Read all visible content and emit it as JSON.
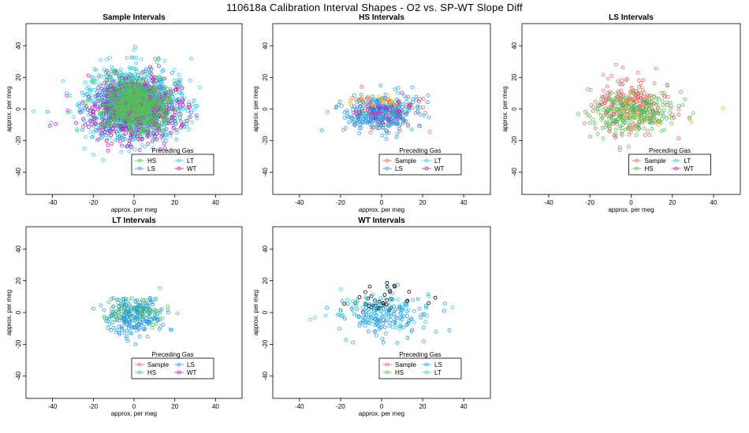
{
  "figure_title": "110618a   Calibration Interval Shapes - O2 vs. SP-WT Slope Diff",
  "colors": {
    "Sample": "#e8696e",
    "HS": "#55c05a",
    "LS": "#2b9ee6",
    "LT": "#36d0de",
    "WT": "#bb1fbf",
    "black": "#000000",
    "yellow": "#f0c020"
  },
  "chart_data": [
    {
      "type": "scatter",
      "title": "Sample Intervals",
      "xlabel": "approx. per meg",
      "ylabel": "approx. per meg",
      "xlim": [
        -53,
        53
      ],
      "ylim": [
        -54,
        54
      ],
      "xticks": [
        -40,
        -20,
        0,
        20,
        40
      ],
      "yticks": [
        -40,
        -20,
        0,
        20,
        40
      ],
      "legend": {
        "title": "Preceding Gas",
        "placement": "bottom-right",
        "entries": [
          "HS",
          "LT",
          "LS",
          "WT"
        ]
      },
      "series": [
        {
          "name": "LT",
          "color_key": "LT",
          "count": 700,
          "center": [
            0,
            3
          ],
          "spread": [
            12,
            12
          ]
        },
        {
          "name": "LS",
          "color_key": "LS",
          "count": 650,
          "center": [
            0,
            2
          ],
          "spread": [
            10,
            10
          ]
        },
        {
          "name": "WT",
          "color_key": "WT",
          "count": 550,
          "center": [
            0,
            0
          ],
          "spread": [
            11,
            10
          ]
        },
        {
          "name": "HS",
          "color_key": "HS",
          "count": 650,
          "center": [
            1,
            2
          ],
          "spread": [
            8,
            8
          ]
        }
      ]
    },
    {
      "type": "scatter",
      "title": "HS Intervals",
      "xlabel": "approx. per meg",
      "ylabel": "approx. per meg",
      "xlim": [
        -53,
        53
      ],
      "ylim": [
        -54,
        54
      ],
      "xticks": [
        -40,
        -20,
        0,
        20,
        40
      ],
      "yticks": [
        -40,
        -20,
        0,
        20,
        40
      ],
      "legend": {
        "title": "Preceding Gas",
        "placement": "bottom-right",
        "entries": [
          "Sample",
          "LT",
          "LS",
          "WT"
        ]
      },
      "series": [
        {
          "name": "Sample",
          "color_key": "Sample",
          "count": 150,
          "center": [
            0,
            -2
          ],
          "spread": [
            8,
            5
          ]
        },
        {
          "name": "LS",
          "color_key": "LS",
          "count": 300,
          "center": [
            0,
            -3
          ],
          "spread": [
            9,
            6
          ]
        },
        {
          "name": "WT",
          "color_key": "WT",
          "count": 40,
          "center": [
            2,
            -1
          ],
          "spread": [
            8,
            5
          ]
        },
        {
          "name": "yellow",
          "color_key": "yellow",
          "count": 20,
          "center": [
            0,
            5
          ],
          "spread": [
            6,
            3
          ]
        }
      ]
    },
    {
      "type": "scatter",
      "title": "LS Intervals",
      "xlabel": "approx. per meg",
      "ylabel": "approx. per meg",
      "xlim": [
        -53,
        53
      ],
      "ylim": [
        -54,
        54
      ],
      "xticks": [
        -40,
        -20,
        0,
        20,
        40
      ],
      "yticks": [
        -40,
        -20,
        0,
        20,
        40
      ],
      "legend": {
        "title": "Preceding Gas",
        "placement": "bottom-right",
        "entries": [
          "Sample",
          "LT",
          "HS",
          "WT"
        ]
      },
      "series": [
        {
          "name": "Sample",
          "color_key": "Sample",
          "count": 250,
          "center": [
            0,
            2
          ],
          "spread": [
            9,
            8
          ]
        },
        {
          "name": "HS",
          "color_key": "HS",
          "count": 250,
          "center": [
            0,
            -2
          ],
          "spread": [
            10,
            7
          ]
        },
        {
          "name": "yellow",
          "color_key": "yellow",
          "count": 15,
          "center": [
            5,
            -3
          ],
          "spread": [
            12,
            6
          ]
        }
      ]
    },
    {
      "type": "scatter",
      "title": "LT Intervals",
      "xlabel": "approx. per meg",
      "ylabel": "approx. per meg",
      "xlim": [
        -53,
        53
      ],
      "ylim": [
        -54,
        54
      ],
      "xticks": [
        -40,
        -20,
        0,
        20,
        40
      ],
      "yticks": [
        -40,
        -20,
        0,
        20,
        40
      ],
      "legend": {
        "title": "Preceding Gas",
        "placement": "bottom-right",
        "entries": [
          "Sample",
          "LS",
          "HS",
          "WT"
        ]
      },
      "series": [
        {
          "name": "HS",
          "color_key": "HS",
          "count": 120,
          "center": [
            0,
            0
          ],
          "spread": [
            8,
            4
          ]
        },
        {
          "name": "LS",
          "color_key": "LS",
          "count": 180,
          "center": [
            0,
            -3
          ],
          "spread": [
            7,
            6
          ]
        }
      ]
    },
    {
      "type": "scatter",
      "title": "WT Intervals",
      "xlabel": "approx. per meg",
      "ylabel": "approx. per meg",
      "xlim": [
        -53,
        53
      ],
      "ylim": [
        -54,
        54
      ],
      "xticks": [
        -40,
        -20,
        0,
        20,
        40
      ],
      "yticks": [
        -40,
        -20,
        0,
        20,
        40
      ],
      "legend": {
        "title": "Preceding Gas",
        "placement": "bottom-right",
        "entries": [
          "Sample",
          "LS",
          "HS",
          "LT"
        ]
      },
      "series": [
        {
          "name": "black",
          "color_key": "black",
          "count": 40,
          "center": [
            0,
            8
          ],
          "spread": [
            8,
            5
          ]
        },
        {
          "name": "LT",
          "color_key": "LT",
          "count": 80,
          "center": [
            0,
            2
          ],
          "spread": [
            12,
            6
          ]
        },
        {
          "name": "LS",
          "color_key": "LS",
          "count": 130,
          "center": [
            2,
            -4
          ],
          "spread": [
            12,
            7
          ]
        }
      ]
    }
  ]
}
